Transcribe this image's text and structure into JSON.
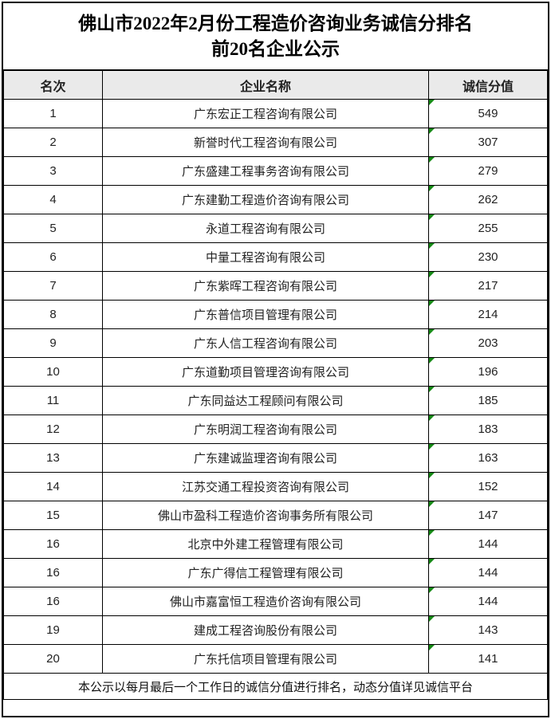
{
  "title": {
    "line1": "佛山市2022年2月份工程造价咨询业务诚信分排名",
    "line2": "前20名企业公示"
  },
  "table": {
    "headers": [
      "名次",
      "企业名称",
      "诚信分值"
    ],
    "rows": [
      {
        "rank": "1",
        "company": "广东宏正工程咨询有限公司",
        "score": "549"
      },
      {
        "rank": "2",
        "company": "新誉时代工程咨询有限公司",
        "score": "307"
      },
      {
        "rank": "3",
        "company": "广东盛建工程事务咨询有限公司",
        "score": "279"
      },
      {
        "rank": "4",
        "company": "广东建勤工程造价咨询有限公司",
        "score": "262"
      },
      {
        "rank": "5",
        "company": "永道工程咨询有限公司",
        "score": "255"
      },
      {
        "rank": "6",
        "company": "中量工程咨询有限公司",
        "score": "230"
      },
      {
        "rank": "7",
        "company": "广东紫晖工程咨询有限公司",
        "score": "217"
      },
      {
        "rank": "8",
        "company": "广东普信项目管理有限公司",
        "score": "214"
      },
      {
        "rank": "9",
        "company": "广东人信工程咨询有限公司",
        "score": "203"
      },
      {
        "rank": "10",
        "company": "广东道勤项目管理咨询有限公司",
        "score": "196"
      },
      {
        "rank": "11",
        "company": "广东同益达工程顾问有限公司",
        "score": "185"
      },
      {
        "rank": "12",
        "company": "广东明润工程咨询有限公司",
        "score": "183"
      },
      {
        "rank": "13",
        "company": "广东建诚监理咨询有限公司",
        "score": "163"
      },
      {
        "rank": "14",
        "company": "江苏交通工程投资咨询有限公司",
        "score": "152"
      },
      {
        "rank": "15",
        "company": "佛山市盈科工程造价咨询事务所有限公司",
        "score": "147"
      },
      {
        "rank": "16",
        "company": "北京中外建工程管理有限公司",
        "score": "144"
      },
      {
        "rank": "16",
        "company": "广东广得信工程管理有限公司",
        "score": "144"
      },
      {
        "rank": "16",
        "company": "佛山市嘉富恒工程造价咨询有限公司",
        "score": "144"
      },
      {
        "rank": "19",
        "company": "建成工程咨询股份有限公司",
        "score": "143"
      },
      {
        "rank": "20",
        "company": "广东托信项目管理有限公司",
        "score": "141"
      }
    ]
  },
  "footer": {
    "note": "本公示以每月最后一个工作日的诚信分值进行排名，动态分值详见诚信平台"
  },
  "icons": {
    "score_flag": "excel-green-triangle"
  },
  "colors": {
    "header_bg": "#eaeaea",
    "border": "#000000",
    "flag_green": "#168a16"
  }
}
